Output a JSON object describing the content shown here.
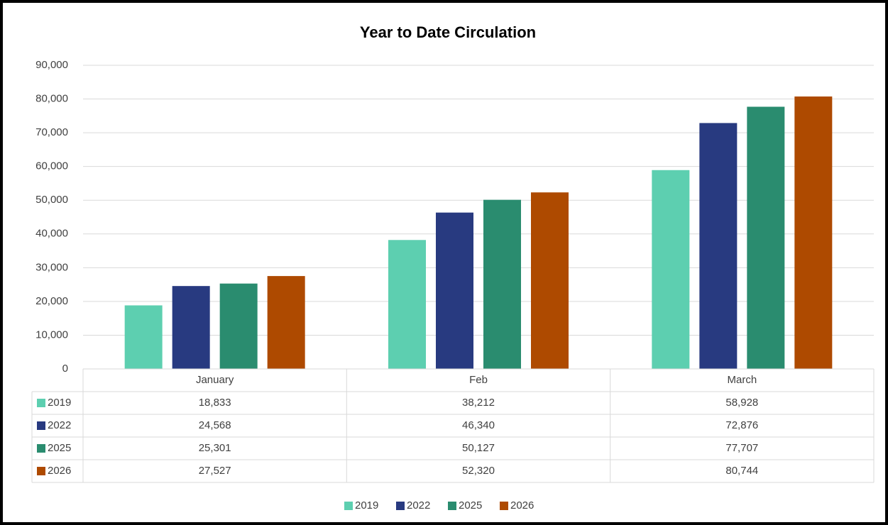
{
  "chart_data": {
    "type": "bar",
    "title": "Year to Date Circulation",
    "categories": [
      "January",
      "Feb",
      "March"
    ],
    "series": [
      {
        "name": "2019",
        "color": "#5dcfb0",
        "values": [
          18833,
          38212,
          58928
        ],
        "value_labels": [
          "18,833",
          "38,212",
          "58,928"
        ]
      },
      {
        "name": "2022",
        "color": "#283a80",
        "values": [
          24568,
          46340,
          72876
        ],
        "value_labels": [
          "24,568",
          "46,340",
          "72,876"
        ]
      },
      {
        "name": "2025",
        "color": "#2a8c6f",
        "values": [
          25301,
          50127,
          77707
        ],
        "value_labels": [
          "25,301",
          "50,127",
          "77,707"
        ]
      },
      {
        "name": "2026",
        "color": "#ae4a00",
        "values": [
          27527,
          52320,
          80744
        ],
        "value_labels": [
          "27,527",
          "52,320",
          "80,744"
        ]
      }
    ],
    "ylim": [
      0,
      90000
    ],
    "yticks": [
      0,
      {
        "value": 10000,
        "label": "10,000"
      },
      {
        "value": 20000,
        "label": "20,000"
      },
      {
        "value": 30000,
        "label": "30,000"
      },
      {
        "value": 40000,
        "label": "40,000"
      },
      {
        "value": 50000,
        "label": "50,000"
      },
      {
        "value": 60000,
        "label": "60,000"
      },
      {
        "value": 70000,
        "label": "70,000"
      },
      {
        "value": 80000,
        "label": "80,000"
      },
      {
        "value": 90000,
        "label": "90,000"
      }
    ],
    "grid": true,
    "legend": "bottom"
  }
}
